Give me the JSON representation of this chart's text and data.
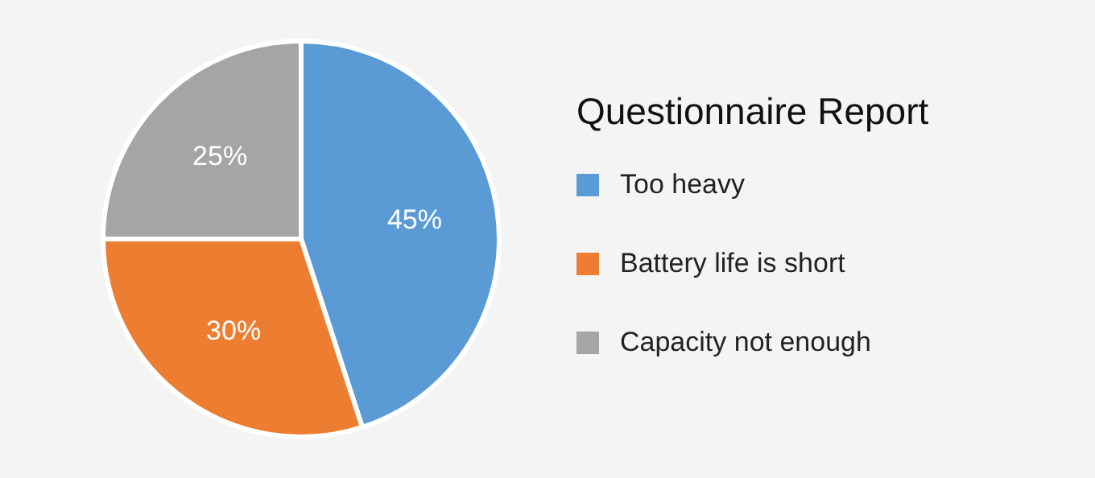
{
  "chart_data": {
    "type": "pie",
    "title": "Questionnaire Report",
    "categories": [
      "Too heavy",
      "Battery life is short",
      "Capacity not enough"
    ],
    "values": [
      45,
      30,
      25
    ],
    "colors": [
      "#5b9bd5",
      "#ed7d31",
      "#a5a5a5"
    ],
    "value_labels": [
      "45%",
      "30%",
      "25%"
    ],
    "legend": "right"
  }
}
